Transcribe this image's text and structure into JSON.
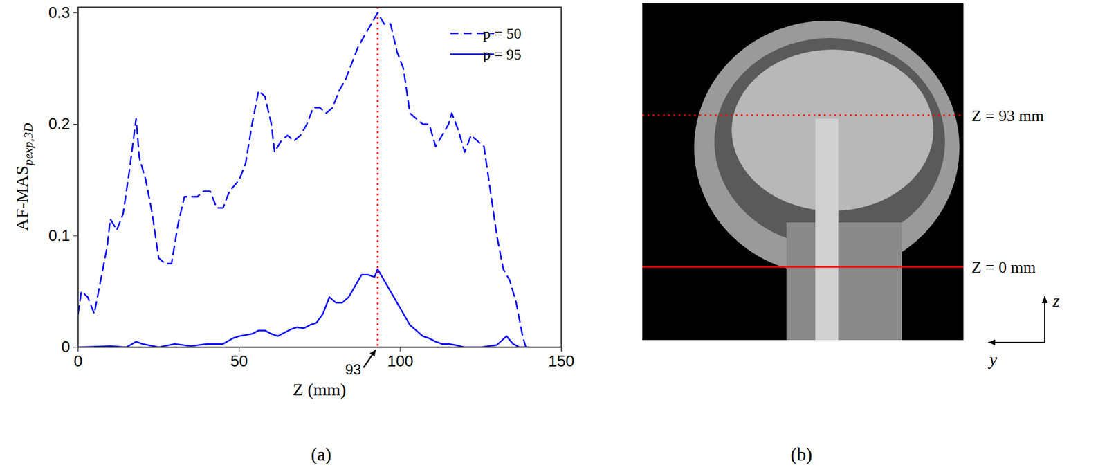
{
  "chart_data": {
    "type": "line",
    "panel_label": "(a)",
    "x_label": "Z (mm)",
    "y_label": "AF-MAS",
    "y_label_subscript": "pexp,3D",
    "xlim": [
      0,
      150
    ],
    "xticks": [
      0,
      50,
      100,
      150
    ],
    "ylim": [
      0,
      0.305
    ],
    "yticks": [
      0,
      0.1,
      0.2,
      0.3
    ],
    "legend": "top-right",
    "series": [
      {
        "name": "p = 50",
        "color": "#0000ff",
        "line_style": "dashed",
        "x": [
          0,
          1,
          3,
          5,
          7,
          9,
          10,
          12,
          14,
          16,
          18,
          19,
          21,
          23,
          25,
          27,
          29,
          31,
          33,
          35,
          37,
          39,
          41,
          43,
          45,
          47,
          50,
          52,
          54,
          56,
          58,
          60,
          61,
          63,
          65,
          67,
          69,
          71,
          73,
          75,
          77,
          79,
          81,
          83,
          85,
          87,
          89,
          91,
          93,
          95,
          97,
          99,
          101,
          103,
          105,
          107,
          109,
          111,
          113,
          115,
          116,
          118,
          120,
          122,
          124,
          126,
          128,
          130,
          132,
          134,
          136,
          138,
          139
        ],
        "values": [
          0.03,
          0.05,
          0.045,
          0.03,
          0.06,
          0.09,
          0.115,
          0.105,
          0.12,
          0.16,
          0.205,
          0.17,
          0.15,
          0.12,
          0.08,
          0.075,
          0.075,
          0.11,
          0.135,
          0.135,
          0.135,
          0.14,
          0.14,
          0.125,
          0.125,
          0.14,
          0.15,
          0.165,
          0.2,
          0.23,
          0.225,
          0.2,
          0.175,
          0.185,
          0.19,
          0.185,
          0.19,
          0.2,
          0.215,
          0.215,
          0.21,
          0.215,
          0.23,
          0.24,
          0.255,
          0.27,
          0.28,
          0.29,
          0.3,
          0.29,
          0.29,
          0.265,
          0.25,
          0.21,
          0.205,
          0.2,
          0.2,
          0.18,
          0.19,
          0.2,
          0.21,
          0.195,
          0.175,
          0.19,
          0.185,
          0.18,
          0.14,
          0.1,
          0.07,
          0.06,
          0.04,
          0.01,
          0
        ]
      },
      {
        "name": "p = 95",
        "color": "#0000ff",
        "line_style": "solid",
        "x": [
          0,
          10,
          15,
          18,
          20,
          25,
          30,
          35,
          40,
          45,
          48,
          50,
          52,
          54,
          56,
          58,
          60,
          62,
          64,
          66,
          68,
          70,
          72,
          74,
          76,
          78,
          80,
          82,
          84,
          86,
          88,
          90,
          92,
          93,
          95,
          97,
          99,
          101,
          103,
          105,
          107,
          109,
          111,
          113,
          115,
          117,
          120,
          125,
          130,
          133,
          135,
          137,
          140
        ],
        "values": [
          0,
          0.001,
          0,
          0.005,
          0.003,
          0,
          0.003,
          0.001,
          0.003,
          0.003,
          0.008,
          0.01,
          0.011,
          0.012,
          0.015,
          0.015,
          0.012,
          0.01,
          0.013,
          0.016,
          0.018,
          0.017,
          0.02,
          0.022,
          0.03,
          0.045,
          0.04,
          0.04,
          0.045,
          0.055,
          0.065,
          0.065,
          0.063,
          0.07,
          0.06,
          0.05,
          0.04,
          0.03,
          0.02,
          0.015,
          0.01,
          0.008,
          0.005,
          0.003,
          0.003,
          0.002,
          0,
          0,
          0.002,
          0.01,
          0.003,
          0,
          0
        ]
      }
    ],
    "annotations": [
      {
        "x": 93,
        "label": "93",
        "color": "#ff0000",
        "line_style": "dotted"
      }
    ]
  },
  "image_panel": {
    "panel_label": "(b)",
    "lines": [
      {
        "label": "Z = 93 mm",
        "color": "#ff0000",
        "line_style": "dotted"
      },
      {
        "label": "Z = 0 mm",
        "color": "#ff0000",
        "line_style": "solid"
      }
    ],
    "axis_labels": [
      "z",
      "y"
    ]
  }
}
